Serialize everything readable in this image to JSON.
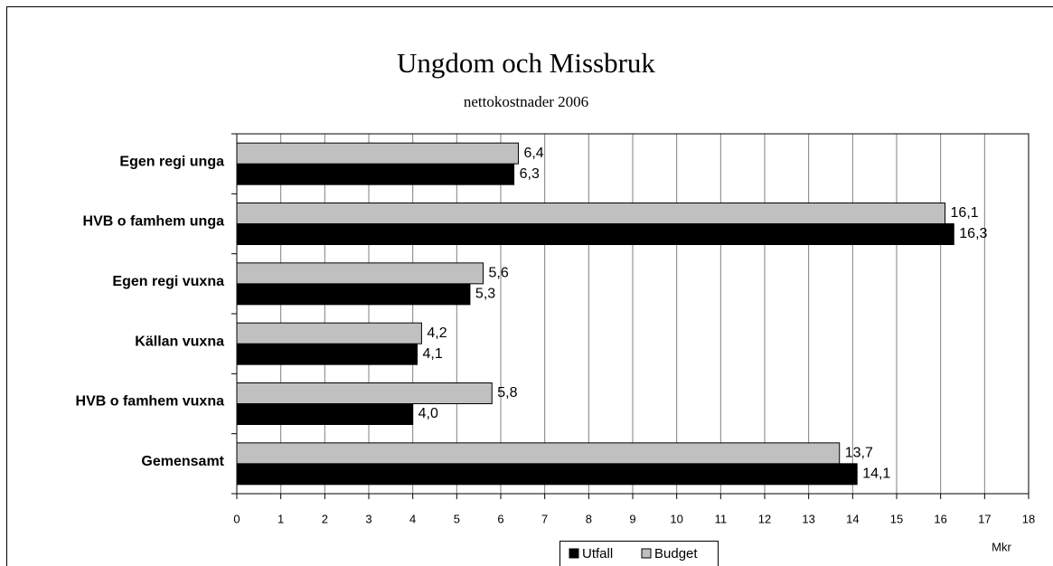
{
  "chart_data": {
    "type": "barh",
    "title": "Ungdom och Missbruk",
    "subtitle": "nettokostnader 2006",
    "x_label": "Mkr",
    "categories": [
      "Egen regi unga",
      "HVB o famhem unga",
      "Egen regi vuxna",
      "Källan vuxna",
      "HVB o famhem vuxna",
      "Gemensamt"
    ],
    "series": [
      {
        "name": "Utfall",
        "color": "#000000",
        "values": [
          6.3,
          16.3,
          5.3,
          4.1,
          4.0,
          14.1
        ],
        "value_labels": [
          "6,3",
          "16,3",
          "5,3",
          "4,1",
          "4,0",
          "14,1"
        ]
      },
      {
        "name": "Budget",
        "color": "#c0c0c0",
        "values": [
          6.4,
          16.1,
          5.6,
          4.2,
          5.8,
          13.7
        ],
        "value_labels": [
          "6,4",
          "16,1",
          "5,6",
          "4,2",
          "5,8",
          "13,7"
        ]
      }
    ],
    "xlim": [
      0,
      18
    ],
    "xticks": [
      0,
      1,
      2,
      3,
      4,
      5,
      6,
      7,
      8,
      9,
      10,
      11,
      12,
      13,
      14,
      15,
      16,
      17,
      18
    ],
    "grid": true,
    "legend": "bottom"
  }
}
